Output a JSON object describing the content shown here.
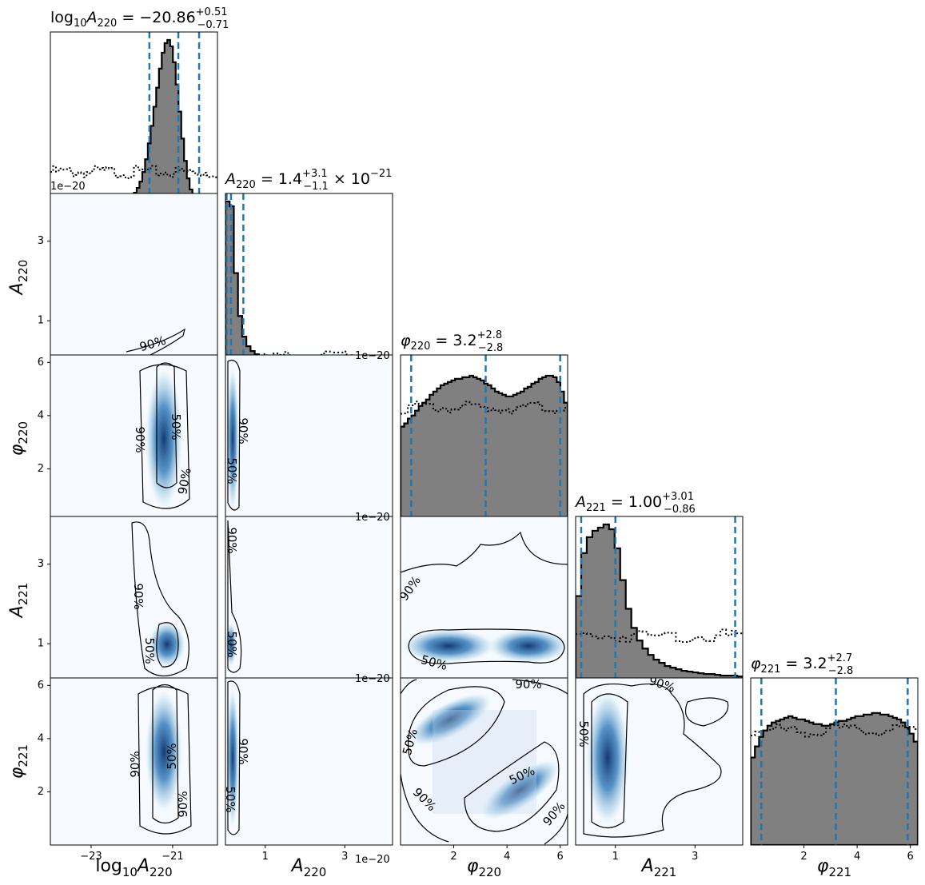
{
  "chart_data": {
    "type": "corner",
    "params": [
      "log10A220",
      "A220",
      "phi220",
      "A221",
      "phi221"
    ],
    "axis_labels": {
      "log10A220": {
        "base": "log",
        "sub": "10",
        "sym": "A",
        "idx": "220"
      },
      "A220": {
        "sym": "A",
        "idx": "220"
      },
      "phi220": {
        "sym": "φ",
        "idx": "220"
      },
      "A221": {
        "sym": "A",
        "idx": "221"
      },
      "phi221": {
        "sym": "φ",
        "idx": "221"
      }
    },
    "titles": [
      {
        "param": "log10A220",
        "prefix": "log",
        "prefix_sub": "10",
        "sym": "A",
        "idx": "220",
        "median": "−20.86",
        "plus": "+0.51",
        "minus": "−0.71",
        "suffix": ""
      },
      {
        "param": "A220",
        "prefix": "",
        "prefix_sub": "",
        "sym": "A",
        "idx": "220",
        "median": "1.4",
        "plus": "+3.1",
        "minus": "−1.1",
        "suffix": "× 10",
        "suffix_exp": "−21"
      },
      {
        "param": "phi220",
        "prefix": "",
        "prefix_sub": "",
        "sym": "φ",
        "idx": "220",
        "median": "3.2",
        "plus": "+2.8",
        "minus": "−2.8",
        "suffix": ""
      },
      {
        "param": "A221",
        "prefix": "",
        "prefix_sub": "",
        "sym": "A",
        "idx": "221",
        "median": "1.00",
        "plus": "+3.01",
        "minus": "−0.86",
        "suffix": ""
      },
      {
        "param": "phi221",
        "prefix": "",
        "prefix_sub": "",
        "sym": "φ",
        "idx": "221",
        "median": "3.2",
        "plus": "+2.7",
        "minus": "−2.8",
        "suffix": ""
      }
    ],
    "ranges": {
      "log10A220": [
        -24.0,
        -19.9
      ],
      "A220": [
        0.0,
        4.2
      ],
      "phi220": [
        0.0,
        6.28
      ],
      "A221": [
        0.0,
        4.2
      ],
      "phi221": [
        0.0,
        6.28
      ]
    },
    "ticks": {
      "log10A220": [
        -23,
        -21
      ],
      "A220": [
        1,
        3
      ],
      "phi220": [
        2,
        4,
        6
      ],
      "A221": [
        1,
        3
      ],
      "phi221": [
        2,
        4,
        6
      ]
    },
    "tick_labels": {
      "log10A220": [
        "−23",
        "−21"
      ],
      "A220": [
        "1",
        "3"
      ],
      "phi220": [
        "2",
        "4",
        "6"
      ],
      "A221": [
        "1",
        "3"
      ],
      "phi221": [
        "2",
        "4",
        "6"
      ]
    },
    "offset_texts": {
      "x_A220": "1e−20",
      "diag_log10A220": "1e−20",
      "diag_A220": "1e−20",
      "row_phi220_A220": "1e−20",
      "row_A221_A220": "1e−20"
    },
    "quantiles": {
      "log10A220": [
        -21.57,
        -20.86,
        -20.35
      ],
      "A220": [
        0.03,
        0.14,
        0.45
      ],
      "phi220": [
        0.4,
        3.2,
        6.0
      ],
      "A221": [
        0.14,
        1.0,
        4.01
      ],
      "phi221": [
        0.4,
        3.2,
        5.9
      ]
    },
    "histograms": {
      "log10A220": {
        "x0": -24.0,
        "x1": -19.9,
        "posterior": [
          0,
          0,
          0,
          0,
          0,
          0,
          0,
          0,
          0,
          0,
          0,
          0,
          0,
          0,
          0,
          0,
          0,
          0,
          0,
          0,
          0,
          0,
          0,
          0,
          0,
          0,
          0,
          0,
          0.01,
          0.02,
          0.04,
          0.07,
          0.11,
          0.17,
          0.25,
          0.35,
          0.46,
          0.58,
          0.7,
          0.82,
          0.92,
          0.98,
          1.0,
          0.96,
          0.86,
          0.72,
          0.55,
          0.38,
          0.24,
          0.13,
          0.06,
          0.03,
          0.01,
          0,
          0,
          0,
          0,
          0,
          0,
          0
        ],
        "prior": 0.17
      },
      "A220": {
        "x0": 0.0,
        "x1": 4.2,
        "posterior": [
          1.0,
          0.97,
          0.55,
          0.28,
          0.15,
          0.09,
          0.06,
          0.04,
          0.03,
          0.025,
          0.02,
          0.018,
          0.016,
          0.014,
          0.013,
          0.012,
          0.011,
          0.01,
          0.01,
          0.01,
          0.009,
          0.009,
          0.009,
          0.008,
          0.008,
          0.008,
          0.008,
          0.008,
          0.007,
          0.007,
          0.007,
          0.007,
          0.007,
          0.007,
          0.007,
          0.006,
          0.006,
          0.006,
          0.006,
          0.006
        ],
        "prior": 0.02
      },
      "phi220": {
        "x0": 0.0,
        "x1": 6.28,
        "posterior": [
          0.6,
          0.62,
          0.65,
          0.67,
          0.7,
          0.73,
          0.75,
          0.77,
          0.8,
          0.82,
          0.84,
          0.86,
          0.87,
          0.88,
          0.89,
          0.9,
          0.9,
          0.91,
          0.91,
          0.92,
          0.91,
          0.9,
          0.89,
          0.87,
          0.86,
          0.84,
          0.82,
          0.81,
          0.8,
          0.79,
          0.79,
          0.8,
          0.81,
          0.82,
          0.84,
          0.85,
          0.87,
          0.88,
          0.9,
          0.91,
          0.92,
          0.92,
          0.91,
          0.88,
          0.82,
          0.75
        ],
        "prior": 0.72
      },
      "A221": {
        "x0": 0.0,
        "x1": 4.2,
        "posterior": [
          0.55,
          0.82,
          0.92,
          0.96,
          0.98,
          1.0,
          0.97,
          0.85,
          0.65,
          0.47,
          0.35,
          0.27,
          0.22,
          0.18,
          0.15,
          0.13,
          0.11,
          0.1,
          0.09,
          0.08,
          0.075,
          0.07,
          0.065,
          0.06,
          0.06,
          0.055,
          0.05,
          0.05,
          0.05,
          0.045
        ],
        "prior": 0.3
      },
      "phi221": {
        "x0": 0.0,
        "x1": 6.28,
        "posterior": [
          0.55,
          0.62,
          0.68,
          0.72,
          0.75,
          0.77,
          0.78,
          0.79,
          0.8,
          0.81,
          0.8,
          0.79,
          0.79,
          0.78,
          0.77,
          0.76,
          0.76,
          0.75,
          0.75,
          0.76,
          0.77,
          0.78,
          0.78,
          0.79,
          0.8,
          0.81,
          0.81,
          0.82,
          0.82,
          0.83,
          0.83,
          0.82,
          0.82,
          0.81,
          0.8,
          0.79,
          0.77,
          0.74,
          0.7,
          0.65
        ],
        "prior": 0.72
      }
    },
    "contour_levels": [
      "50%",
      "90%"
    ],
    "colors": {
      "hist_fill": "#808080",
      "quantile_line": "#1f77b4",
      "density_dark": "#08306b",
      "density_light": "#f7fbff"
    }
  }
}
